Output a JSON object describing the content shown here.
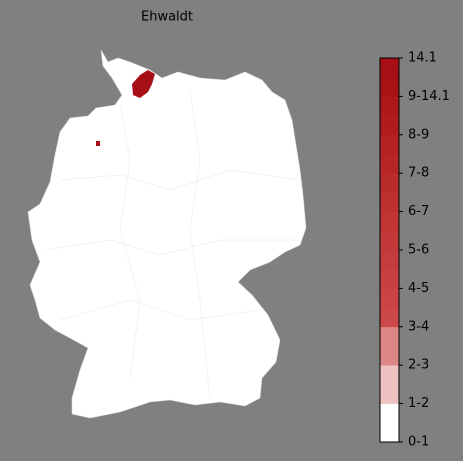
{
  "title": "Ehwaldt",
  "legend": {
    "labels": [
      "0-1",
      "1-2",
      "2-3",
      "3-4",
      "4-5",
      "5-6",
      "6-7",
      "7-8",
      "8-9",
      "9-14.1",
      "14.1"
    ],
    "colors": [
      "#ffffff",
      "#ffffff",
      "#efc2c2",
      "#efc2c2",
      "#dc8686",
      "#dc8686",
      "#cd4848",
      "#ca4444",
      "#c84040",
      "#c53c3c",
      "#c23838",
      "#c03434",
      "#bd3030",
      "#ba2c2c",
      "#b72626",
      "#b42222",
      "#b01c1c",
      "#ad1818",
      "#a91212",
      "#a50f15"
    ]
  },
  "highlight_color": "#a50f15"
}
